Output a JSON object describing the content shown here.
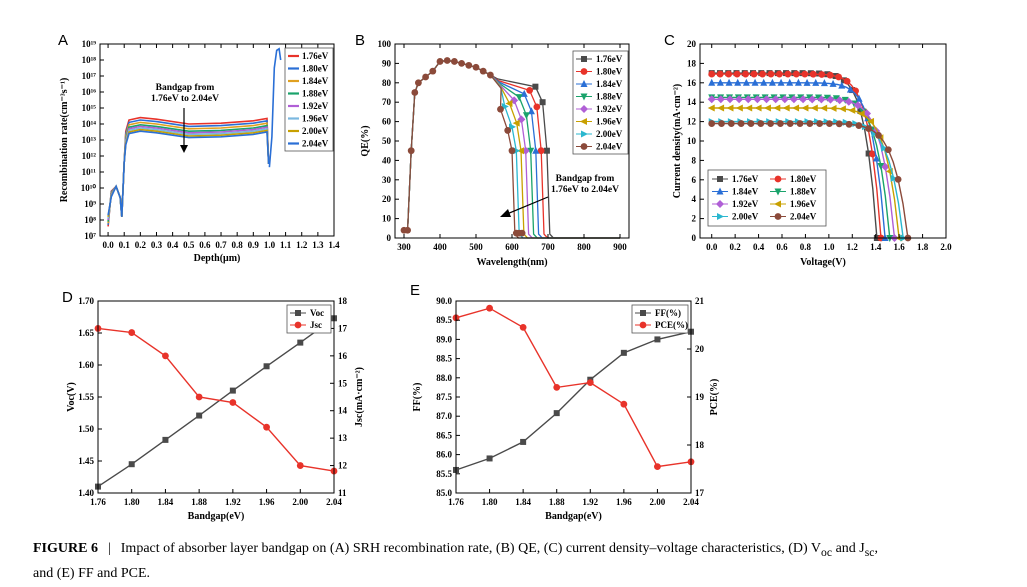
{
  "caption": {
    "label": "FIGURE 6",
    "separator": "|",
    "text": "Impact of absorber layer bandgap on (A) SRH recombination rate, (B) QE, (C) current density–voltage characteristics, (D) V",
    "voc_sub": "oc",
    "and": " and J",
    "jsc_sub": "sc",
    "tail": ",",
    "line2": "and (E) FF and PCE."
  },
  "colors": {
    "1.76eV": "#4a4a4a",
    "1.80eV": "#e8332a",
    "1.84eV": "#2a6fd6",
    "1.88eV": "#1aa36b",
    "1.92eV": "#b05fd6",
    "1.96eV": "#c8a000",
    "2.00eV": "#2ab7cf",
    "2.04eV": "#8b4a3a",
    "A_lines": [
      "#e8332a",
      "#2a6fd6",
      "#e0a020",
      "#1aa36b",
      "#b05fd6",
      "#7ab8e0",
      "#c8a000",
      "#2a6fd6"
    ]
  },
  "legend_labels": [
    "1.76eV",
    "1.80eV",
    "1.84eV",
    "1.88eV",
    "1.92eV",
    "1.96eV",
    "2.00eV",
    "2.04eV"
  ],
  "chart_data": [
    {
      "id": "A",
      "panel_label": "A",
      "type": "line",
      "xlabel": "Depth(μm)",
      "ylabel": "Recombination rate(cm⁻³s⁻¹)",
      "xlim": [
        -0.05,
        1.4
      ],
      "yscale": "log",
      "ylim_exp": [
        7,
        19
      ],
      "xticks": [
        "0.0",
        "0.1",
        "0.2",
        "0.3",
        "0.4",
        "0.5",
        "0.6",
        "0.7",
        "0.8",
        "0.9",
        "1.0",
        "1.1",
        "1.2",
        "1.3",
        "1.4"
      ],
      "xtick_values": [
        0,
        0.1,
        0.2,
        0.3,
        0.4,
        0.5,
        0.6,
        0.7,
        0.8,
        0.9,
        1.0,
        1.1,
        1.2,
        1.3,
        1.4
      ],
      "yticks": [
        "10⁷",
        "10⁸",
        "10⁹",
        "10¹⁰",
        "10¹¹",
        "10¹²",
        "10¹³",
        "10¹⁴",
        "10¹⁵",
        "10¹⁶",
        "10¹⁷",
        "10¹⁸",
        "10¹⁹"
      ],
      "annotation": [
        "Bandgap from",
        "1.76eV to 2.04eV"
      ],
      "legend": "top-right",
      "series_log10": [
        {
          "name": "1.76eV",
          "plateau": 14.35
        },
        {
          "name": "1.80eV",
          "plateau": 14.2
        },
        {
          "name": "1.84eV",
          "plateau": 14.05
        },
        {
          "name": "1.88eV",
          "plateau": 13.9
        },
        {
          "name": "1.92eV",
          "plateau": 13.8
        },
        {
          "name": "1.96eV",
          "plateau": 13.7
        },
        {
          "name": "2.00eV",
          "plateau": 13.6
        },
        {
          "name": "2.04eV",
          "plateau": 13.5
        }
      ]
    },
    {
      "id": "B",
      "panel_label": "B",
      "type": "line",
      "xlabel": "Wavelength(nm)",
      "ylabel": "QE(%)",
      "xlim": [
        275,
        925
      ],
      "ylim": [
        0,
        100
      ],
      "xticks": [
        "300",
        "400",
        "500",
        "600",
        "700",
        "800",
        "900"
      ],
      "xtick_values": [
        300,
        400,
        500,
        600,
        700,
        800,
        900
      ],
      "yticks": [
        "0",
        "10",
        "20",
        "30",
        "40",
        "50",
        "60",
        "70",
        "80",
        "90",
        "100"
      ],
      "annotation": [
        "Bandgap from",
        "1.76eV to 2.04eV"
      ],
      "legend": "top-right",
      "shared_x": [
        300,
        310,
        320,
        330,
        340,
        360,
        380,
        400,
        420,
        440,
        460,
        480,
        500,
        520,
        540
      ],
      "shared_y": [
        4,
        4,
        45,
        75,
        80,
        83,
        86,
        91,
        91.5,
        91,
        90,
        89,
        88,
        86,
        84
      ],
      "cutoffs": [
        {
          "name": "1.76eV",
          "cutoff_nm": 705
        },
        {
          "name": "1.80eV",
          "cutoff_nm": 689
        },
        {
          "name": "1.84eV",
          "cutoff_nm": 674
        },
        {
          "name": "1.88eV",
          "cutoff_nm": 660
        },
        {
          "name": "1.92eV",
          "cutoff_nm": 646
        },
        {
          "name": "1.96eV",
          "cutoff_nm": 633
        },
        {
          "name": "2.00eV",
          "cutoff_nm": 620
        },
        {
          "name": "2.04eV",
          "cutoff_nm": 608
        }
      ]
    },
    {
      "id": "C",
      "panel_label": "C",
      "type": "line",
      "xlabel": "Voltage(V)",
      "ylabel": "Current density(mA·cm⁻²)",
      "xlim": [
        -0.1,
        2.0
      ],
      "ylim": [
        0,
        20
      ],
      "xticks": [
        "0.0",
        "0.2",
        "0.4",
        "0.6",
        "0.8",
        "1.0",
        "1.2",
        "1.4",
        "1.6",
        "1.8",
        "2.0"
      ],
      "xtick_values": [
        0,
        0.2,
        0.4,
        0.6,
        0.8,
        1.0,
        1.2,
        1.4,
        1.6,
        1.8,
        2.0
      ],
      "yticks": [
        "0",
        "2",
        "4",
        "6",
        "8",
        "10",
        "12",
        "14",
        "16",
        "18",
        "20"
      ],
      "legend": "bottom-left",
      "series": [
        {
          "name": "1.76eV",
          "jsc": 17.0,
          "voc": 1.41
        },
        {
          "name": "1.80eV",
          "jsc": 16.9,
          "voc": 1.445
        },
        {
          "name": "1.84eV",
          "jsc": 16.0,
          "voc": 1.48
        },
        {
          "name": "1.88eV",
          "jsc": 14.5,
          "voc": 1.52
        },
        {
          "name": "1.92eV",
          "jsc": 14.3,
          "voc": 1.56
        },
        {
          "name": "1.96eV",
          "jsc": 13.4,
          "voc": 1.6
        },
        {
          "name": "2.00eV",
          "jsc": 12.0,
          "voc": 1.635
        },
        {
          "name": "2.04eV",
          "jsc": 11.8,
          "voc": 1.675
        }
      ]
    },
    {
      "id": "D",
      "panel_label": "D",
      "type": "line",
      "xlabel": "Bandgap(eV)",
      "ylabel_left": "Voc(V)",
      "ylabel_right": "Jsc(mA·cm⁻²)",
      "categories": [
        1.76,
        1.8,
        1.84,
        1.88,
        1.92,
        1.96,
        2.0,
        2.04
      ],
      "xticks": [
        "1.76",
        "1.80",
        "1.84",
        "1.88",
        "1.92",
        "1.96",
        "2.00",
        "2.04"
      ],
      "ylim_left": [
        1.4,
        1.7
      ],
      "yticks_left": [
        "1.40",
        "1.45",
        "1.50",
        "1.55",
        "1.60",
        "1.65",
        "1.70"
      ],
      "ylim_right": [
        11,
        18
      ],
      "yticks_right": [
        "11",
        "12",
        "13",
        "14",
        "15",
        "16",
        "17",
        "18"
      ],
      "legend": "top-right",
      "series": [
        {
          "name": "Voc",
          "axis": "left",
          "color": "#4a4a4a",
          "marker": "square",
          "x": [
            1.76,
            1.8,
            1.84,
            1.88,
            1.92,
            1.96,
            2.0,
            2.04
          ],
          "values": [
            1.41,
            1.445,
            1.483,
            1.521,
            1.56,
            1.598,
            1.635,
            1.673
          ]
        },
        {
          "name": "Jsc",
          "axis": "right",
          "color": "#e8332a",
          "marker": "circle",
          "x": [
            1.76,
            1.8,
            1.84,
            1.88,
            1.92,
            1.96,
            2.0,
            2.04
          ],
          "values": [
            17.0,
            16.85,
            16.0,
            14.5,
            14.3,
            13.4,
            12.0,
            11.8
          ]
        }
      ]
    },
    {
      "id": "E",
      "panel_label": "E",
      "type": "line",
      "xlabel": "Bandgap(eV)",
      "ylabel_left": "FF(%)",
      "ylabel_right": "PCE(%)",
      "categories": [
        1.76,
        1.8,
        1.84,
        1.88,
        1.92,
        1.96,
        2.0,
        2.04
      ],
      "xticks": [
        "1.76",
        "1.80",
        "1.84",
        "1.88",
        "1.92",
        "1.96",
        "2.00",
        "2.04"
      ],
      "ylim_left": [
        85.0,
        90.0
      ],
      "yticks_left": [
        "85.0",
        "85.5",
        "86.0",
        "86.5",
        "87.0",
        "87.5",
        "88.0",
        "88.5",
        "89.0",
        "89.5",
        "90.0"
      ],
      "ylim_right": [
        17,
        21
      ],
      "yticks_right": [
        "17",
        "18",
        "19",
        "20",
        "21"
      ],
      "legend": "top-right",
      "series": [
        {
          "name": "FF(%)",
          "axis": "left",
          "color": "#4a4a4a",
          "marker": "square",
          "x": [
            1.76,
            1.8,
            1.84,
            1.88,
            1.92,
            1.96,
            2.0,
            2.04
          ],
          "values": [
            85.6,
            85.9,
            86.33,
            87.08,
            87.95,
            88.65,
            89.0,
            89.2
          ]
        },
        {
          "name": "PCE(%)",
          "axis": "right",
          "color": "#e8332a",
          "marker": "circle",
          "x": [
            1.76,
            1.8,
            1.84,
            1.88,
            1.92,
            1.96,
            2.0,
            2.04
          ],
          "values": [
            20.65,
            20.85,
            20.45,
            19.2,
            19.3,
            18.85,
            17.55,
            17.65
          ]
        }
      ]
    }
  ]
}
